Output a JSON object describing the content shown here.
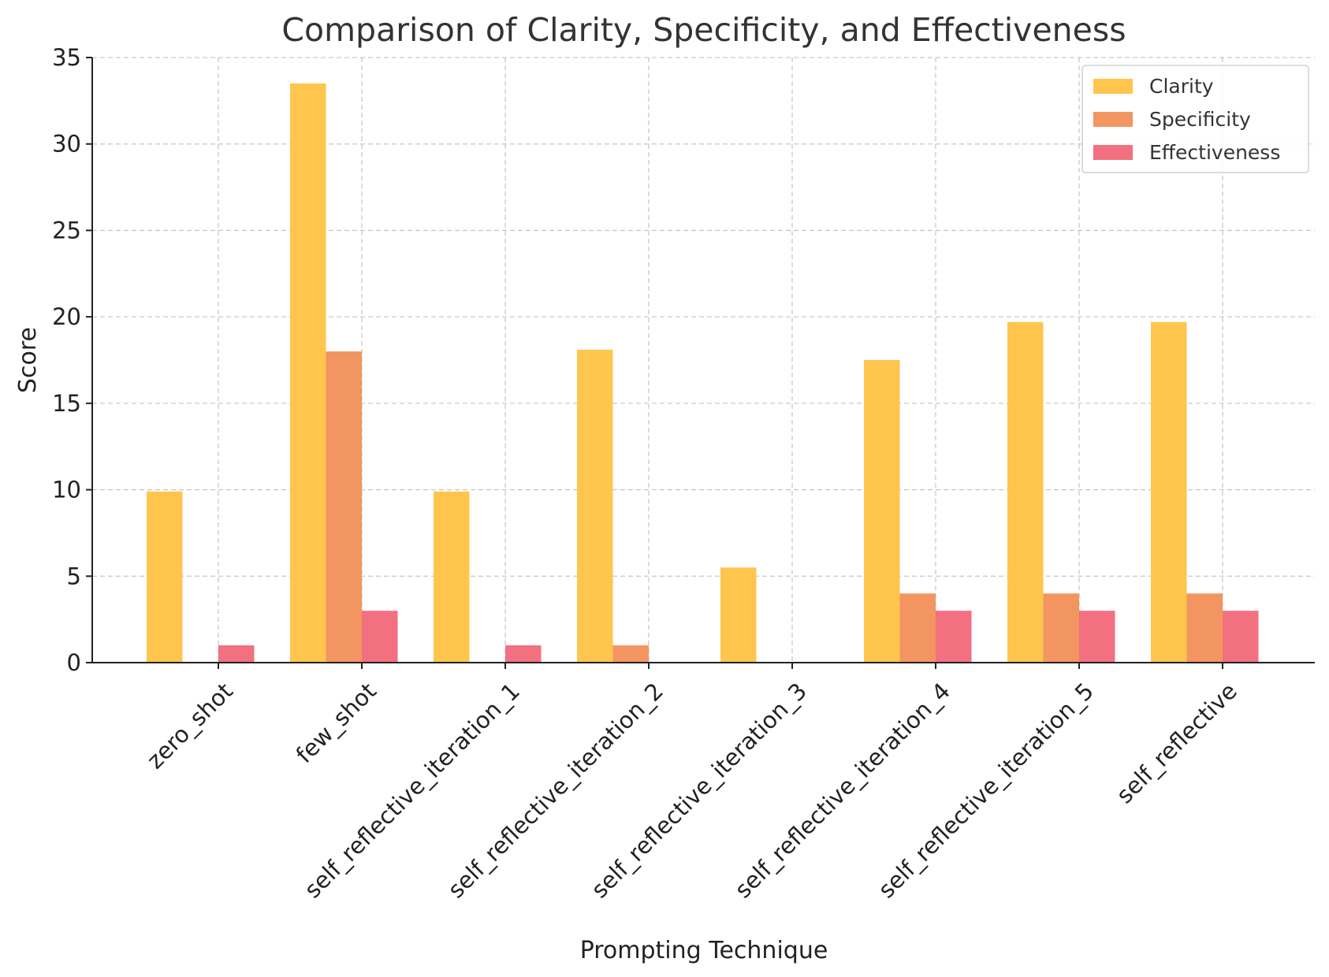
{
  "chart_data": {
    "type": "bar",
    "title": "Comparison of Clarity, Specificity, and Effectiveness",
    "xlabel": "Prompting Technique",
    "ylabel": "Score",
    "ylim": [
      0,
      35
    ],
    "yticks": [
      0,
      5,
      10,
      15,
      20,
      25,
      30,
      35
    ],
    "grid": true,
    "legend_position": "top-right",
    "categories": [
      "zero_shot",
      "few_shot",
      "self_reflective_iteration_1",
      "self_reflective_iteration_2",
      "self_reflective_iteration_3",
      "self_reflective_iteration_4",
      "self_reflective_iteration_5",
      "self_reflective"
    ],
    "series": [
      {
        "name": "Clarity",
        "color": "#FFC54D",
        "values": [
          9.9,
          33.5,
          9.9,
          18.1,
          5.5,
          17.5,
          19.7,
          19.7
        ]
      },
      {
        "name": "Specificity",
        "color": "#F39560",
        "values": [
          0,
          18,
          0,
          1,
          0,
          4,
          4,
          4
        ]
      },
      {
        "name": "Effectiveness",
        "color": "#F2707F",
        "values": [
          1,
          3,
          1,
          0,
          0,
          3,
          3,
          3
        ]
      }
    ]
  }
}
